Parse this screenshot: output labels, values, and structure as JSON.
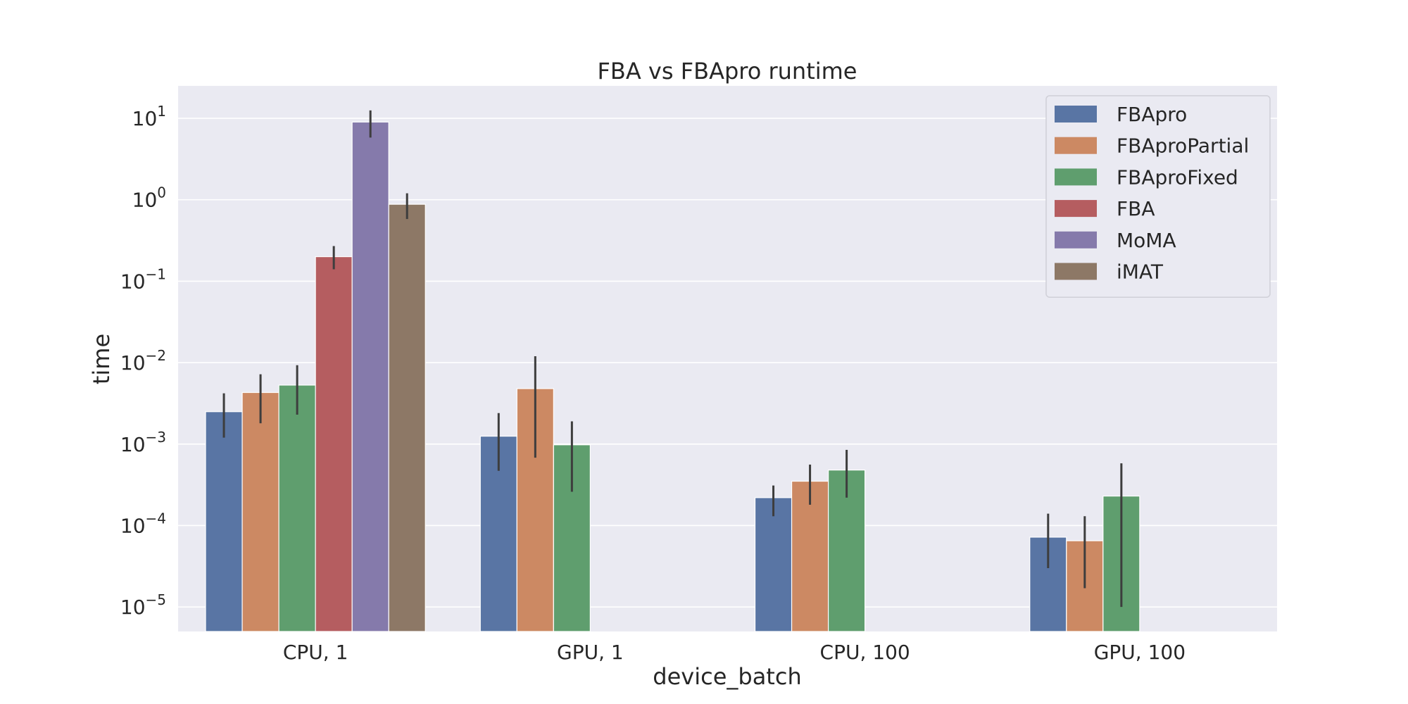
{
  "chart_data": {
    "type": "bar",
    "title": "FBA vs FBApro runtime",
    "xlabel": "device_batch",
    "ylabel": "time",
    "yscale": "log",
    "ylim": [
      5e-06,
      25
    ],
    "yticks": [
      {
        "value": 1e-05,
        "base": "10",
        "exp": "−5"
      },
      {
        "value": 0.0001,
        "base": "10",
        "exp": "−4"
      },
      {
        "value": 0.001,
        "base": "10",
        "exp": "−3"
      },
      {
        "value": 0.01,
        "base": "10",
        "exp": "−2"
      },
      {
        "value": 0.1,
        "base": "10",
        "exp": "−1"
      },
      {
        "value": 1,
        "base": "10",
        "exp": "0"
      },
      {
        "value": 10,
        "base": "10",
        "exp": "1"
      }
    ],
    "categories": [
      "CPU, 1",
      "GPU, 1",
      "CPU, 100",
      "GPU, 100"
    ],
    "grid": true,
    "legend_position": "top-right",
    "series": [
      {
        "name": "FBApro",
        "color": "#5975a4",
        "values": [
          0.0025,
          0.00125,
          0.00022,
          7.2e-05
        ],
        "err_low": [
          0.0012,
          0.00047,
          0.00013,
          3e-05
        ],
        "err_high": [
          0.0042,
          0.0024,
          0.00031,
          0.00014
        ]
      },
      {
        "name": "FBAproPartial",
        "color": "#cc8963",
        "values": [
          0.0043,
          0.0048,
          0.00035,
          6.5e-05
        ],
        "err_low": [
          0.0018,
          0.00068,
          0.00018,
          1.7e-05
        ],
        "err_high": [
          0.0072,
          0.012,
          0.00056,
          0.00013
        ]
      },
      {
        "name": "FBAproFixed",
        "color": "#5f9e6e",
        "values": [
          0.0053,
          0.00098,
          0.00048,
          0.00023
        ],
        "err_low": [
          0.0023,
          0.00026,
          0.00022,
          1e-05
        ],
        "err_high": [
          0.0093,
          0.0019,
          0.00085,
          0.00058
        ]
      },
      {
        "name": "FBA",
        "color": "#b55d60",
        "values": [
          0.2,
          null,
          null,
          null
        ],
        "err_low": [
          0.14,
          null,
          null,
          null
        ],
        "err_high": [
          0.27,
          null,
          null,
          null
        ]
      },
      {
        "name": "MoMA",
        "color": "#857aab",
        "values": [
          9.0,
          null,
          null,
          null
        ],
        "err_low": [
          5.8,
          null,
          null,
          null
        ],
        "err_high": [
          12.5,
          null,
          null,
          null
        ]
      },
      {
        "name": "iMAT",
        "color": "#8d7866",
        "values": [
          0.88,
          null,
          null,
          null
        ],
        "err_low": [
          0.58,
          null,
          null,
          null
        ],
        "err_high": [
          1.2,
          null,
          null,
          null
        ]
      }
    ]
  }
}
